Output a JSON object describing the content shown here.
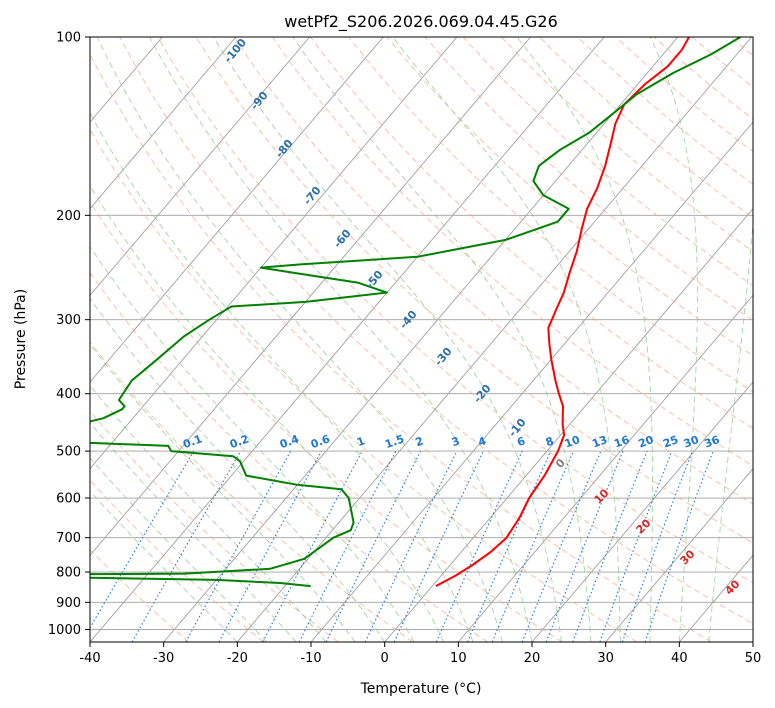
{
  "chart_data": {
    "type": "line",
    "title": "wetPf2_S206.2026.069.04.45.G26",
    "xlabel": "Temperature (°C)",
    "ylabel": "Pressure (hPa)",
    "xlim": [
      -40,
      50
    ],
    "ylim": [
      1050,
      100
    ],
    "y_scale": "log",
    "grid": true,
    "x_ticks": [
      "-40",
      "-30",
      "-20",
      "-10",
      "0",
      "10",
      "20",
      "30",
      "40",
      "50"
    ],
    "y_ticks": [
      "100",
      "200",
      "300",
      "400",
      "500",
      "600",
      "700",
      "800",
      "900",
      "1000"
    ],
    "series": [
      {
        "color": "#ff0000",
        "points": [
          [
            0.5,
            845
          ],
          [
            2,
            810
          ],
          [
            3,
            780
          ],
          [
            4,
            740
          ],
          [
            4.5,
            700
          ],
          [
            4,
            650
          ],
          [
            3,
            600
          ],
          [
            2.5,
            550
          ],
          [
            1.5,
            500
          ],
          [
            0.5,
            470
          ],
          [
            -1,
            450
          ],
          [
            -3,
            420
          ],
          [
            -5,
            400
          ],
          [
            -7,
            380
          ],
          [
            -10,
            350
          ],
          [
            -12,
            330
          ],
          [
            -14,
            310
          ],
          [
            -15,
            290
          ],
          [
            -16,
            270
          ],
          [
            -17.5,
            250
          ],
          [
            -19,
            230
          ],
          [
            -21,
            210
          ],
          [
            -22.5,
            195
          ],
          [
            -23.5,
            180
          ],
          [
            -25,
            165
          ],
          [
            -27,
            150
          ],
          [
            -28.5,
            140
          ],
          [
            -29.5,
            130
          ],
          [
            -29,
            120
          ],
          [
            -28,
            112
          ],
          [
            -28,
            105
          ],
          [
            -28.5,
            100
          ]
        ]
      },
      {
        "color": "#008000",
        "points": [
          [
            -16.5,
            845
          ],
          [
            -21,
            835
          ],
          [
            -30,
            825
          ],
          [
            -55,
            815
          ],
          [
            -70,
            810
          ],
          [
            -35,
            805
          ],
          [
            -24,
            790
          ],
          [
            -20.5,
            760
          ],
          [
            -19,
            700
          ],
          [
            -17.5,
            680
          ],
          [
            -18,
            660
          ],
          [
            -20,
            625
          ],
          [
            -21.5,
            600
          ],
          [
            -23.5,
            580
          ],
          [
            -30,
            570
          ],
          [
            -38,
            550
          ],
          [
            -40.5,
            520
          ],
          [
            -42,
            510
          ],
          [
            -51,
            500
          ],
          [
            -52,
            490
          ],
          [
            -71,
            480
          ],
          [
            -69,
            460
          ],
          [
            -64,
            440
          ],
          [
            -62.5,
            425
          ],
          [
            -62.5,
            420
          ],
          [
            -64,
            410
          ],
          [
            -64.5,
            380
          ],
          [
            -63.5,
            350
          ],
          [
            -62.5,
            320
          ],
          [
            -61,
            300
          ],
          [
            -59.5,
            285
          ],
          [
            -50,
            280
          ],
          [
            -40,
            270
          ],
          [
            -45,
            260
          ],
          [
            -55,
            250
          ],
          [
            -60,
            245
          ],
          [
            -55,
            242
          ],
          [
            -40,
            235
          ],
          [
            -30,
            220
          ],
          [
            -25,
            205
          ],
          [
            -25,
            195
          ],
          [
            -30,
            185
          ],
          [
            -33,
            175
          ],
          [
            -34,
            165
          ],
          [
            -33,
            155
          ],
          [
            -31,
            145
          ],
          [
            -30,
            135
          ],
          [
            -29,
            125
          ],
          [
            -26.5,
            115
          ],
          [
            -23.5,
            107
          ],
          [
            -21.5,
            100
          ]
        ]
      }
    ],
    "dry_adiabat_labels": [
      "-100",
      "-90",
      "-80",
      "-70",
      "-60",
      "-50",
      "-40",
      "-30",
      "-20",
      "-10"
    ],
    "mixing_ratio_labels": [
      "0.1",
      "0.2",
      "0.4",
      "0.6",
      "1",
      "1.5",
      "2",
      "3",
      "4",
      "6",
      "8",
      "10",
      "13",
      "16",
      "20",
      "25",
      "30",
      "36"
    ],
    "moist_adiabat_labels": [
      "0",
      "10",
      "20",
      "30",
      "40"
    ],
    "colors": {
      "temperature": "#ff0000",
      "dewpoint": "#008000",
      "isotherm": "#a0a0a0",
      "dry_adiabat": "#f4a582",
      "moist_adiabat": "#8fc98f",
      "mixing_ratio": "#1f77d4",
      "dry_label": "#2c6fad",
      "moist_label": "#d62728"
    }
  }
}
